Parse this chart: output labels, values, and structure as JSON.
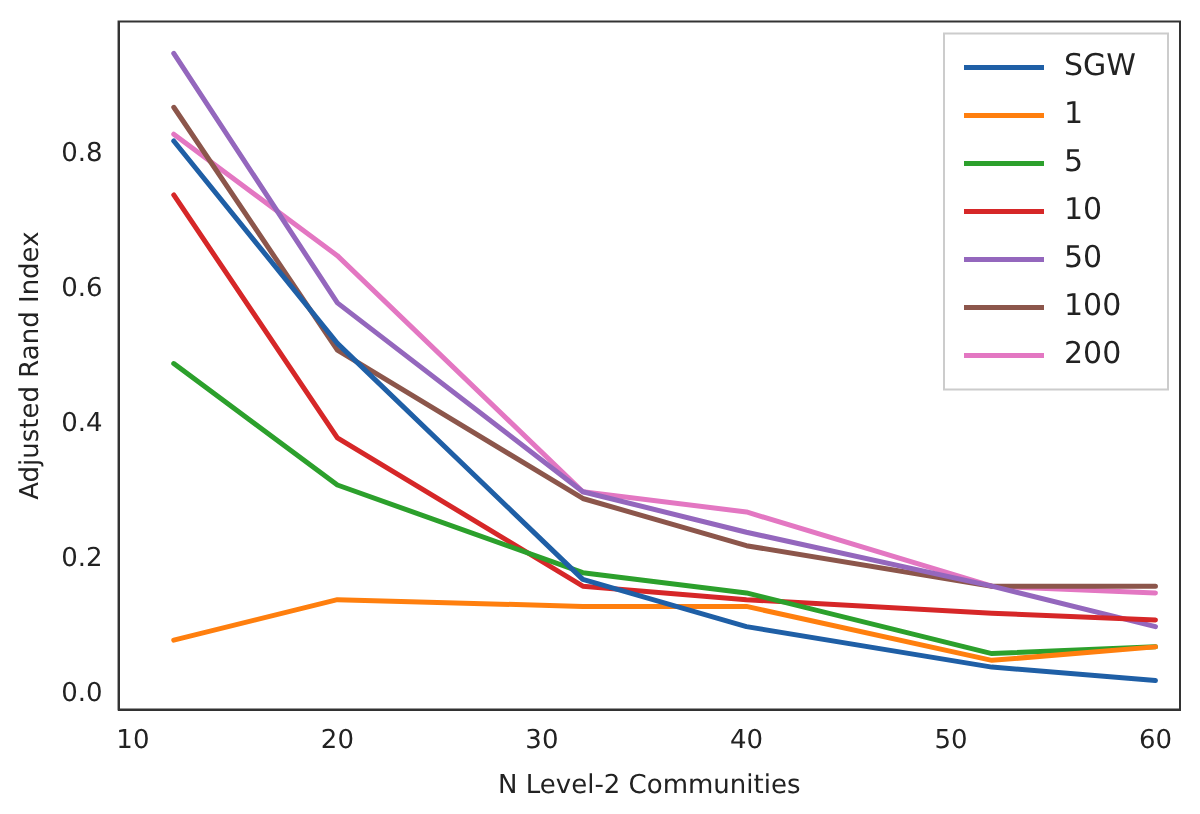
{
  "chart_data": {
    "type": "line",
    "xlabel": "N Level-2 Communities",
    "ylabel": "Adjusted Rand Index",
    "x": [
      12,
      20,
      32,
      40,
      52,
      60
    ],
    "series": [
      {
        "name": "SGW",
        "color": "#1f5fa6",
        "values": [
          0.82,
          0.52,
          0.17,
          0.1,
          0.04,
          0.02
        ]
      },
      {
        "name": "1",
        "color": "#ff7f0e",
        "values": [
          0.08,
          0.14,
          0.13,
          0.13,
          0.05,
          0.07
        ]
      },
      {
        "name": "5",
        "color": "#2ca02c",
        "values": [
          0.49,
          0.31,
          0.18,
          0.15,
          0.06,
          0.07
        ]
      },
      {
        "name": "10",
        "color": "#d62728",
        "values": [
          0.74,
          0.38,
          0.16,
          0.14,
          0.12,
          0.11
        ]
      },
      {
        "name": "50",
        "color": "#9467bd",
        "values": [
          0.95,
          0.58,
          0.3,
          0.24,
          0.16,
          0.1
        ]
      },
      {
        "name": "100",
        "color": "#8c564b",
        "values": [
          0.87,
          0.51,
          0.29,
          0.22,
          0.16,
          0.16
        ]
      },
      {
        "name": "200",
        "color": "#e377c2",
        "values": [
          0.83,
          0.65,
          0.3,
          0.27,
          0.16,
          0.15
        ]
      }
    ],
    "xlim": [
      9.3,
      61.2
    ],
    "xticks": [
      10,
      20,
      30,
      40,
      50,
      60
    ],
    "ylim": [
      -0.023,
      0.997
    ],
    "yticks": [
      {
        "value": 0,
        "label": "0.0"
      },
      0.2,
      0.4,
      0.6,
      0.8
    ],
    "grid": false,
    "legend": "top right",
    "marker": "none",
    "line_style": "solid"
  }
}
